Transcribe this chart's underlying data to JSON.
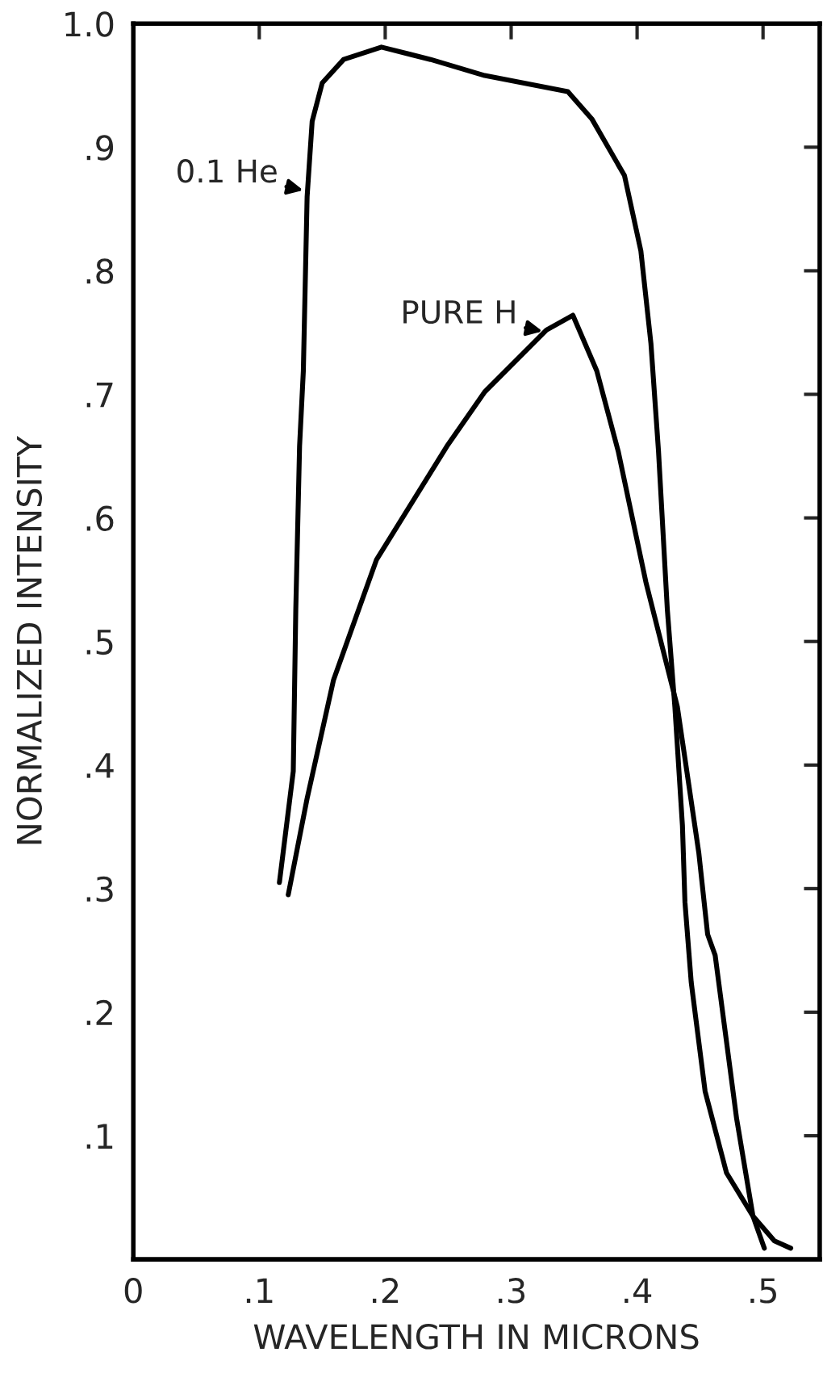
{
  "chart_data": {
    "type": "line",
    "xlabel": "WAVELENGTH IN MICRONS",
    "ylabel": "NORMALIZED INTENSITY",
    "series": [
      {
        "color": "#000000",
        "x": [
          0.116,
          0.127,
          0.129,
          0.132,
          0.135,
          0.138,
          0.142,
          0.15,
          0.167,
          0.197,
          0.236,
          0.279,
          0.345,
          0.364,
          0.39,
          0.403,
          0.411,
          0.417,
          0.424,
          0.43,
          0.436,
          0.438,
          0.443,
          0.454,
          0.471,
          0.492,
          0.509,
          0.522
        ],
        "values": [
          0.305,
          0.395,
          0.526,
          0.658,
          0.719,
          0.86,
          0.921,
          0.952,
          0.971,
          0.981,
          0.971,
          0.958,
          0.945,
          0.923,
          0.877,
          0.816,
          0.741,
          0.654,
          0.526,
          0.447,
          0.351,
          0.289,
          0.224,
          0.136,
          0.07,
          0.035,
          0.015,
          0.009
        ]
      },
      {
        "color": "#000000",
        "x": [
          0.123,
          0.138,
          0.159,
          0.193,
          0.249,
          0.279,
          0.328,
          0.349,
          0.368,
          0.385,
          0.407,
          0.432,
          0.449,
          0.456,
          0.462,
          0.479,
          0.492,
          0.501
        ],
        "values": [
          0.295,
          0.373,
          0.469,
          0.566,
          0.658,
          0.702,
          0.752,
          0.764,
          0.719,
          0.654,
          0.548,
          0.447,
          0.329,
          0.263,
          0.246,
          0.114,
          0.035,
          0.009
        ]
      }
    ],
    "annotations": [
      {
        "text": "0.1 He",
        "x": 0.14,
        "y": 0.864
      },
      {
        "text": "PURE H",
        "x": 0.33,
        "y": 0.75
      }
    ],
    "xlim": [
      0,
      0.545
    ],
    "ylim": [
      0,
      1.0
    ],
    "xticks": [
      0,
      {
        "value": 0.1,
        "label": ".1"
      },
      {
        "value": 0.2,
        "label": ".2"
      },
      {
        "value": 0.3,
        "label": ".3"
      },
      {
        "value": 0.4,
        "label": ".4"
      },
      {
        "value": 0.5,
        "label": ".5"
      }
    ],
    "yticks": [
      {
        "value": 0.1,
        "label": ".1"
      },
      {
        "value": 0.2,
        "label": ".2"
      },
      {
        "value": 0.3,
        "label": ".3"
      },
      {
        "value": 0.4,
        "label": ".4"
      },
      {
        "value": 0.5,
        "label": ".5"
      },
      {
        "value": 0.6,
        "label": ".6"
      },
      {
        "value": 0.7,
        "label": ".7"
      },
      {
        "value": 0.8,
        "label": ".8"
      },
      {
        "value": 0.9,
        "label": ".9"
      },
      {
        "value": 1.0,
        "label": "1.0"
      }
    ],
    "grid": false,
    "legend": false,
    "marker": "none",
    "line_style": "solid"
  }
}
